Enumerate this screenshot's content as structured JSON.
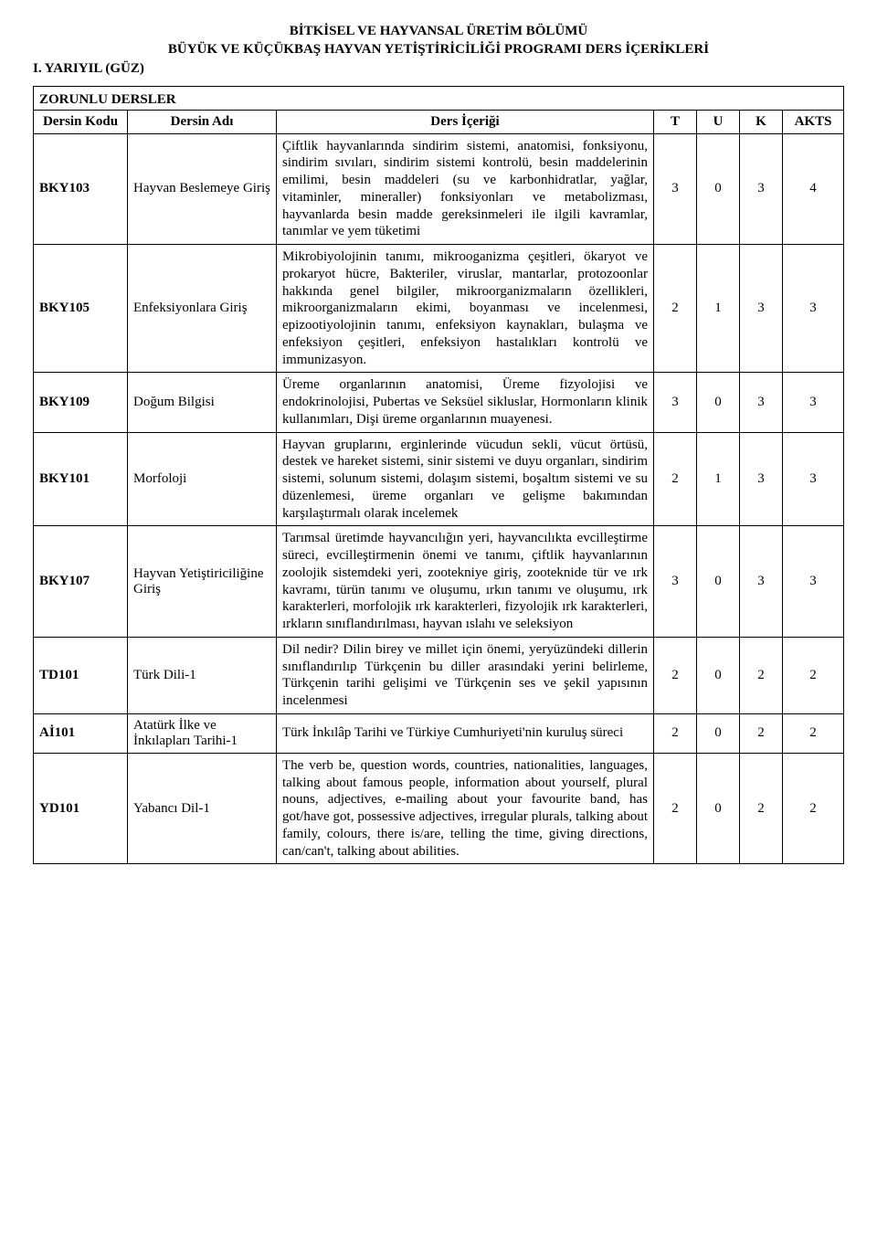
{
  "header": {
    "line1": "BİTKİSEL VE HAYVANSAL ÜRETİM BÖLÜMÜ",
    "line2": "BÜYÜK VE KÜÇÜKBAŞ HAYVAN YETİŞTİRİCİLİĞİ PROGRAMI DERS İÇERİKLERİ",
    "semester": "I. YARIYIL (GÜZ)"
  },
  "section_title": "ZORUNLU DERSLER",
  "columns": {
    "code": "Dersin Kodu",
    "name": "Dersin Adı",
    "content": "Ders İçeriği",
    "t": "T",
    "u": "U",
    "k": "K",
    "akts": "AKTS"
  },
  "rows": [
    {
      "code": "BKY103",
      "name": "Hayvan Beslemeye Giriş",
      "content": "Çiftlik hayvanlarında sindirim sistemi, anatomisi, fonksiyonu, sindirim sıvıları, sindirim sistemi kontrolü, besin maddelerinin emilimi, besin maddeleri (su ve karbonhidratlar, yağlar, vitaminler, mineraller) fonksiyonları ve metabolizması, hayvanlarda besin madde gereksinmeleri ile ilgili kavramlar, tanımlar ve yem tüketimi",
      "t": "3",
      "u": "0",
      "k": "3",
      "akts": "4"
    },
    {
      "code": "BKY105",
      "name": "Enfeksiyonlara Giriş",
      "content": "Mikrobiyolojinin tanımı, mikrooganizma çeşitleri, ökaryot ve prokaryot hücre, Bakteriler, viruslar, mantarlar, protozoonlar hakkında genel bilgiler, mikroorganizmaların özellikleri, mikroorganizmaların ekimi, boyanması ve incelenmesi, epizootiyolojinin tanımı, enfeksiyon kaynakları, bulaşma ve enfeksiyon çeşitleri, enfeksiyon hastalıkları kontrolü ve immunizasyon.",
      "t": "2",
      "u": "1",
      "k": "3",
      "akts": "3"
    },
    {
      "code": "BKY109",
      "name": "Doğum Bilgisi",
      "content": "Üreme organlarının anatomisi, Üreme fizyolojisi ve endokrinolojisi, Pubertas ve Seksüel sikluslar, Hormonların klinik kullanımları, Dişi üreme organlarının muayenesi.",
      "t": "3",
      "u": "0",
      "k": "3",
      "akts": "3"
    },
    {
      "code": "BKY101",
      "name": "Morfoloji",
      "content": "Hayvan gruplarını, erginlerinde vücudun sekli, vücut örtüsü, destek ve hareket sistemi, sinir sistemi ve duyu organları, sindirim sistemi, solunum sistemi, dolaşım sistemi, boşaltım sistemi ve su düzenlemesi, üreme organları ve gelişme bakımından karşılaştırmalı olarak incelemek",
      "t": "2",
      "u": "1",
      "k": "3",
      "akts": "3"
    },
    {
      "code": "BKY107",
      "name": "Hayvan Yetiştiriciliğine Giriş",
      "content": "Tarımsal üretimde hayvancılığın yeri, hayvancılıkta evcilleştirme süreci, evcilleştirmenin önemi ve tanımı, çiftlik hayvanlarının zoolojik sistemdeki yeri, zootekniye giriş,  zooteknide tür ve ırk kavramı,  türün tanımı ve oluşumu, ırkın tanımı ve oluşumu, ırk karakterleri, morfolojik ırk karakterleri, fizyolojik ırk karakterleri, ırkların sınıflandırılması, hayvan ıslahı ve seleksiyon",
      "t": "3",
      "u": "0",
      "k": "3",
      "akts": "3"
    },
    {
      "code": "TD101",
      "name": "Türk Dili-1",
      "content": "Dil nedir? Dilin birey ve millet için önemi, yeryüzündeki dillerin sınıflandırılıp Türkçenin bu diller arasındaki yerini belirleme, Türkçenin tarihi gelişimi ve Türkçenin ses ve şekil yapısının incelenmesi",
      "t": "2",
      "u": "0",
      "k": "2",
      "akts": "2"
    },
    {
      "code": "Aİ101",
      "name": "Atatürk İlke ve İnkılapları Tarihi-1",
      "content": "Türk İnkılâp Tarihi ve Türkiye Cumhuriyeti'nin kuruluş süreci",
      "t": "2",
      "u": "0",
      "k": "2",
      "akts": "2"
    },
    {
      "code": "YD101",
      "name": "Yabancı Dil-1",
      "content": "The verb be, question words, countries, nationalities, languages, talking about famous people, information about yourself, plural nouns, adjectives, e-mailing about your favourite band, has got/have got, possessive adjectives, irregular plurals, talking about family, colours, there is/are, telling the time, giving directions, can/can't, talking about abilities.",
      "t": "2",
      "u": "0",
      "k": "2",
      "akts": "2"
    }
  ]
}
